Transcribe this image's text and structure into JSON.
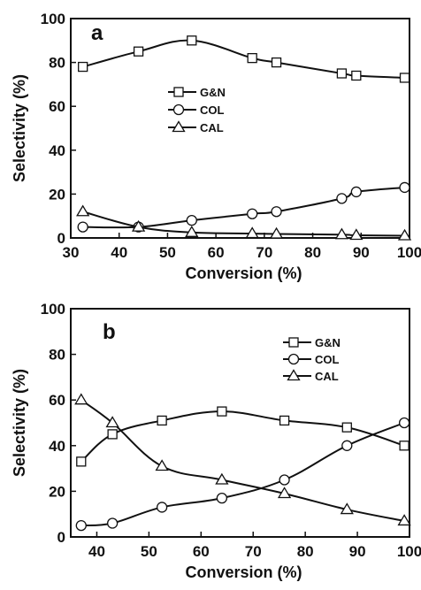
{
  "chart_data": [
    {
      "type": "line",
      "panel_label": "a",
      "xlabel": "Conversion (%)",
      "ylabel": "Selectivity (%)",
      "xlim": [
        30,
        100
      ],
      "ylim": [
        0,
        100
      ],
      "xticks": [
        30,
        40,
        50,
        60,
        70,
        80,
        90,
        100
      ],
      "yticks": [
        0,
        20,
        40,
        60,
        80,
        100
      ],
      "grid": false,
      "legend_position": "center-right",
      "series": [
        {
          "name": "G&N",
          "marker": "square",
          "x": [
            32.5,
            44,
            55,
            67.5,
            72.5,
            86,
            89,
            99
          ],
          "y": [
            78,
            85,
            90,
            82,
            80,
            75,
            74,
            73
          ]
        },
        {
          "name": "COL",
          "marker": "circle",
          "x": [
            32.5,
            44,
            55,
            67.5,
            72.5,
            86,
            89,
            99
          ],
          "y": [
            5,
            5,
            8,
            11,
            12,
            18,
            21,
            23
          ]
        },
        {
          "name": "CAL",
          "marker": "triangle",
          "x": [
            32.5,
            44,
            55,
            67.5,
            72.5,
            86,
            89,
            99
          ],
          "y": [
            12,
            5,
            2.5,
            2,
            1.8,
            1.5,
            1.2,
            1
          ]
        }
      ]
    },
    {
      "type": "line",
      "panel_label": "b",
      "xlabel": "Conversion (%)",
      "ylabel": "Selectivity (%)",
      "xlim": [
        35,
        100
      ],
      "ylim": [
        0,
        100
      ],
      "xticks": [
        40,
        50,
        60,
        70,
        80,
        90,
        100
      ],
      "yticks": [
        0,
        20,
        40,
        60,
        80,
        100
      ],
      "grid": false,
      "legend_position": "top-right",
      "series": [
        {
          "name": "G&N",
          "marker": "square",
          "x": [
            37,
            43,
            52.5,
            64,
            76,
            88,
            99
          ],
          "y": [
            33,
            45,
            51,
            55,
            51,
            48,
            40
          ]
        },
        {
          "name": "COL",
          "marker": "circle",
          "x": [
            37,
            43,
            52.5,
            64,
            76,
            88,
            99
          ],
          "y": [
            5,
            6,
            13,
            17,
            25,
            40,
            50
          ]
        },
        {
          "name": "CAL",
          "marker": "triangle",
          "x": [
            37,
            43,
            52.5,
            64,
            76,
            88,
            99
          ],
          "y": [
            60,
            50,
            31,
            25,
            19,
            12,
            7
          ]
        }
      ]
    }
  ]
}
